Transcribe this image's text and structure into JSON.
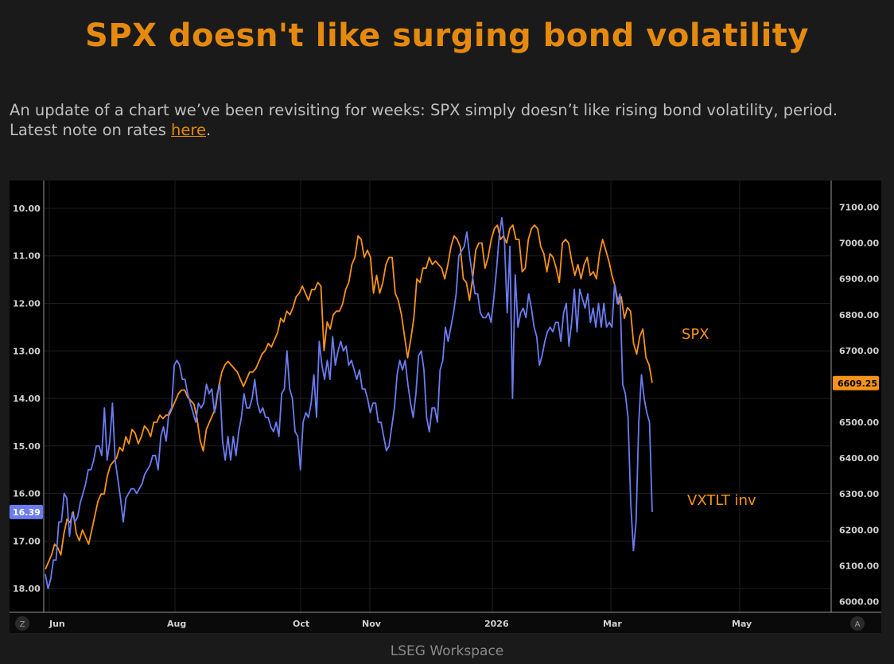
{
  "header": {
    "title": "SPX doesn't like surging bond volatility"
  },
  "body": {
    "text_before": "An update of a chart we’ve been revisiting for weeks: SPX simply doesn’t like rising bond volatility, period. Latest note on rates ",
    "link_label": "here",
    "text_after": "."
  },
  "footer": {
    "source": "LSEG Workspace"
  },
  "colors": {
    "spx": "#f7931a",
    "vxtlt": "#6b7cf0",
    "title": "#e58a0f"
  },
  "chart_data": {
    "type": "line",
    "title": "",
    "x_ticks": [
      "Jun",
      "Aug",
      "Oct",
      "Nov",
      "2026",
      "Mar",
      "May"
    ],
    "left_axis": {
      "label": "VXTLT inv",
      "inverted": true,
      "range": [
        9.75,
        18.5
      ],
      "ticks": [
        "10.00",
        "11.00",
        "12.00",
        "13.00",
        "14.00",
        "15.00",
        "16.00",
        "17.00",
        "18.00"
      ],
      "last_value_label": "16.39"
    },
    "right_axis": {
      "label": "SPX",
      "range": [
        5970,
        7130
      ],
      "ticks": [
        "7100.00",
        "7000.00",
        "6900.00",
        "6800.00",
        "6700.00",
        "6600.00",
        "6500.00",
        "6400.00",
        "6300.00",
        "6200.00",
        "6100.00",
        "6000.00"
      ],
      "last_value_label": "6609.25"
    },
    "series": [
      {
        "name": "SPX",
        "axis": "right",
        "values": [
          6090,
          6110,
          6130,
          6160,
          6150,
          6130,
          6190,
          6230,
          6220,
          6250,
          6190,
          6170,
          6200,
          6180,
          6160,
          6200,
          6240,
          6280,
          6300,
          6300,
          6350,
          6380,
          6390,
          6400,
          6430,
          6420,
          6460,
          6440,
          6480,
          6470,
          6440,
          6460,
          6490,
          6480,
          6460,
          6500,
          6500,
          6520,
          6510,
          6520,
          6520,
          6540,
          6560,
          6580,
          6590,
          6590,
          6570,
          6560,
          6550,
          6510,
          6450,
          6420,
          6480,
          6500,
          6520,
          6540,
          6600,
          6640,
          6660,
          6670,
          6660,
          6650,
          6640,
          6620,
          6600,
          6620,
          6640,
          6640,
          6650,
          6670,
          6690,
          6700,
          6720,
          6710,
          6730,
          6750,
          6790,
          6780,
          6810,
          6800,
          6820,
          6850,
          6860,
          6880,
          6860,
          6840,
          6870,
          6870,
          6890,
          6880,
          6700,
          6780,
          6760,
          6800,
          6810,
          6810,
          6830,
          6870,
          6890,
          6940,
          6960,
          7020,
          7010,
          6960,
          6980,
          6960,
          6860,
          6910,
          6860,
          6890,
          6940,
          6960,
          6960,
          6860,
          6840,
          6800,
          6740,
          6680,
          6730,
          6790,
          6900,
          6890,
          6930,
          6930,
          6960,
          6940,
          6950,
          6940,
          6930,
          6900,
          6940,
          6990,
          7020,
          7010,
          6990,
          6900,
          6890,
          6840,
          6900,
          6980,
          7000,
          7000,
          6930,
          6960,
          7010,
          7040,
          7050,
          7010,
          7020,
          7000,
          7040,
          7050,
          7010,
          7010,
          6920,
          6930,
          7010,
          7040,
          7050,
          7040,
          6990,
          6970,
          6920,
          6970,
          6960,
          6930,
          6890,
          7000,
          7010,
          7000,
          6950,
          6910,
          6940,
          6900,
          6940,
          6960,
          6910,
          6920,
          6900,
          6970,
          7010,
          6980,
          6950,
          6910,
          6880,
          6830,
          6850,
          6790,
          6820,
          6810,
          6720,
          6690,
          6740,
          6760,
          6680,
          6660,
          6610
        ]
      },
      {
        "name": "VXTLT inv",
        "axis": "left",
        "values": [
          17.7,
          18.0,
          17.8,
          17.4,
          17.4,
          16.6,
          16.6,
          16.0,
          16.1,
          16.9,
          16.4,
          16.6,
          16.5,
          16.2,
          16.0,
          15.8,
          15.5,
          15.5,
          15.3,
          15.0,
          15.0,
          15.2,
          14.2,
          15.3,
          14.9,
          14.1,
          15.3,
          15.7,
          16.1,
          16.6,
          16.1,
          16.0,
          15.9,
          15.9,
          16.0,
          15.9,
          15.8,
          15.6,
          15.5,
          15.4,
          15.2,
          15.2,
          15.5,
          14.8,
          14.6,
          14.9,
          14.3,
          14.2,
          13.3,
          13.2,
          13.3,
          13.6,
          13.6,
          13.9,
          14.1,
          14.3,
          14.5,
          14.1,
          14.2,
          14.1,
          13.7,
          13.9,
          13.8,
          14.3,
          13.9,
          13.7,
          14.9,
          15.3,
          14.8,
          15.3,
          14.8,
          15.2,
          14.7,
          14.4,
          13.9,
          14.2,
          14.2,
          14.0,
          13.6,
          14.1,
          14.3,
          14.2,
          14.4,
          14.4,
          14.6,
          14.7,
          14.5,
          14.8,
          13.9,
          13.8,
          13.0,
          13.8,
          14.0,
          14.7,
          14.8,
          15.5,
          14.5,
          14.3,
          14.4,
          14.1,
          13.5,
          14.4,
          12.8,
          13.3,
          13.6,
          13.2,
          13.6,
          12.7,
          13.3,
          13.0,
          12.8,
          13.0,
          12.9,
          13.3,
          13.2,
          13.4,
          13.6,
          13.4,
          13.8,
          13.8,
          14.0,
          14.3,
          14.1,
          14.1,
          14.5,
          14.5,
          14.8,
          15.1,
          15.0,
          14.6,
          14.2,
          13.5,
          13.2,
          13.4,
          13.2,
          13.7,
          14.1,
          14.4,
          13.9,
          13.1,
          13.0,
          13.4,
          14.4,
          14.7,
          14.2,
          14.2,
          14.5,
          13.4,
          13.2,
          12.5,
          12.8,
          12.5,
          12.2,
          11.8,
          11.0,
          10.9,
          10.8,
          10.5,
          11.0,
          11.4,
          11.8,
          11.8,
          12.2,
          12.3,
          12.3,
          12.2,
          12.4,
          11.9,
          11.3,
          10.6,
          10.2,
          10.7,
          12.2,
          10.8,
          14.0,
          11.4,
          12.5,
          12.2,
          12.1,
          12.3,
          11.8,
          12.1,
          12.5,
          12.7,
          13.3,
          13.1,
          12.8,
          12.6,
          12.5,
          12.6,
          12.4,
          12.4,
          12.8,
          12.2,
          12.0,
          12.9,
          12.4,
          11.7,
          12.6,
          11.7,
          11.9,
          12.1,
          11.8,
          12.4,
          12.1,
          12.5,
          12.0,
          12.5,
          12.0,
          12.5,
          12.4,
          12.5,
          11.6,
          12.0,
          11.8,
          13.7,
          13.9,
          14.4,
          16.2,
          17.2,
          16.6,
          14.5,
          13.5,
          14.0,
          14.3,
          14.5,
          16.39
        ]
      }
    ],
    "annotations": [
      "SPX",
      "VXTLT inv"
    ],
    "corner_labels": [
      "Z",
      "A"
    ]
  }
}
